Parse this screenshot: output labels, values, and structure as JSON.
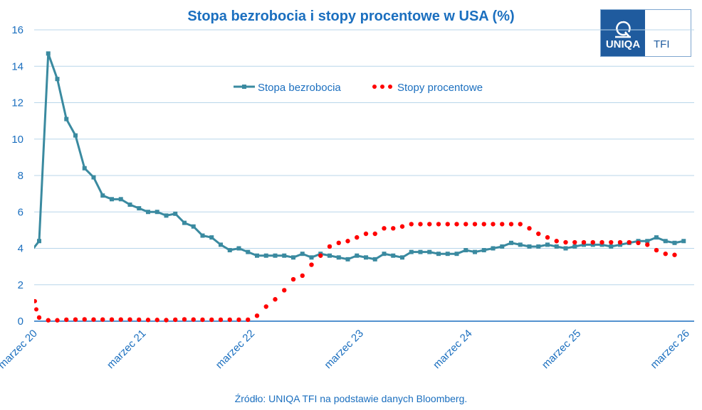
{
  "chart_data": {
    "type": "line",
    "title": "Stopa bezrobocia i stopy procentowe w USA (%)",
    "xlabel": "",
    "ylabel": "",
    "ylim": [
      0,
      16
    ],
    "yticks": [
      "0",
      "2",
      "4",
      "6",
      "8",
      "10",
      "12",
      "14",
      "16"
    ],
    "xticks": [
      "marzec 20",
      "marzec 21",
      "marzec 22",
      "marzec 23",
      "marzec 24",
      "marzec 25",
      "marzec 26"
    ],
    "x_start": "2020-03",
    "x_frequency": "monthly",
    "grid": true,
    "legend_position": "top-center",
    "series": [
      {
        "name": "Stopa bezrobocia",
        "color": "#3a8aa0",
        "style": "line-square-markers",
        "values": [
          4.4,
          14.7,
          13.3,
          11.1,
          10.2,
          8.4,
          7.9,
          6.9,
          6.7,
          6.7,
          6.4,
          6.2,
          6.0,
          6.0,
          5.8,
          5.9,
          5.4,
          5.2,
          4.7,
          4.6,
          4.2,
          3.9,
          4.0,
          3.8,
          3.6,
          3.6,
          3.6,
          3.6,
          3.5,
          3.7,
          3.5,
          3.7,
          3.6,
          3.5,
          3.4,
          3.6,
          3.5,
          3.4,
          3.7,
          3.6,
          3.5,
          3.8,
          3.8,
          3.8,
          3.7,
          3.7,
          3.7,
          3.9,
          3.8,
          3.9,
          4.0,
          4.1,
          4.3,
          4.2,
          4.1,
          4.1,
          4.2,
          4.1,
          4.0,
          4.1,
          4.2,
          4.2,
          4.2,
          4.1,
          4.2,
          4.3,
          4.4,
          4.4,
          4.6,
          4.4,
          4.3,
          4.4
        ]
      },
      {
        "name": "Stopy procentowe",
        "color": "#ff0000",
        "style": "dotted",
        "values": [
          0.2,
          0.05,
          0.05,
          0.08,
          0.09,
          0.1,
          0.09,
          0.09,
          0.09,
          0.09,
          0.09,
          0.08,
          0.07,
          0.07,
          0.06,
          0.08,
          0.1,
          0.09,
          0.08,
          0.08,
          0.08,
          0.08,
          0.08,
          0.08,
          0.3,
          0.8,
          1.2,
          1.7,
          2.3,
          2.5,
          3.1,
          3.6,
          4.1,
          4.3,
          4.4,
          4.6,
          4.8,
          4.8,
          5.1,
          5.1,
          5.2,
          5.33,
          5.33,
          5.33,
          5.33,
          5.33,
          5.33,
          5.33,
          5.33,
          5.33,
          5.33,
          5.33,
          5.33,
          5.33,
          5.1,
          4.8,
          4.6,
          4.4,
          4.33,
          4.33,
          4.33,
          4.33,
          4.33,
          4.33,
          4.33,
          4.33,
          4.3,
          4.2,
          3.9,
          3.7,
          3.64
        ]
      }
    ]
  },
  "logo": {
    "brand": "UNIQA",
    "sub": "TFI"
  },
  "source": "Źródło: UNIQA TFI na podstawie danych Bloomberg."
}
